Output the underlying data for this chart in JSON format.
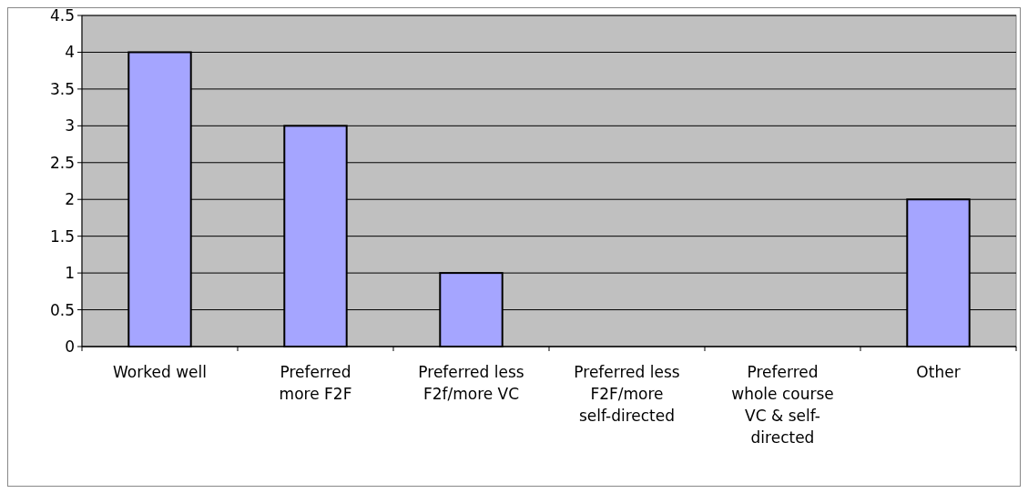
{
  "chart_data": {
    "type": "bar",
    "categories": [
      "Worked well",
      "Preferred more F2F",
      "Preferred less F2f/more VC",
      "Preferred less F2F/more self-directed",
      "Preferred whole course VC & self-directed",
      "Other"
    ],
    "values": [
      4,
      3,
      1,
      0,
      0,
      2
    ],
    "color": "#a5a5ff",
    "ylim": [
      0,
      4.5
    ],
    "yticks": [
      0,
      0.5,
      1,
      1.5,
      2,
      2.5,
      3,
      3.5,
      4,
      4.5
    ],
    "grid": "y"
  }
}
